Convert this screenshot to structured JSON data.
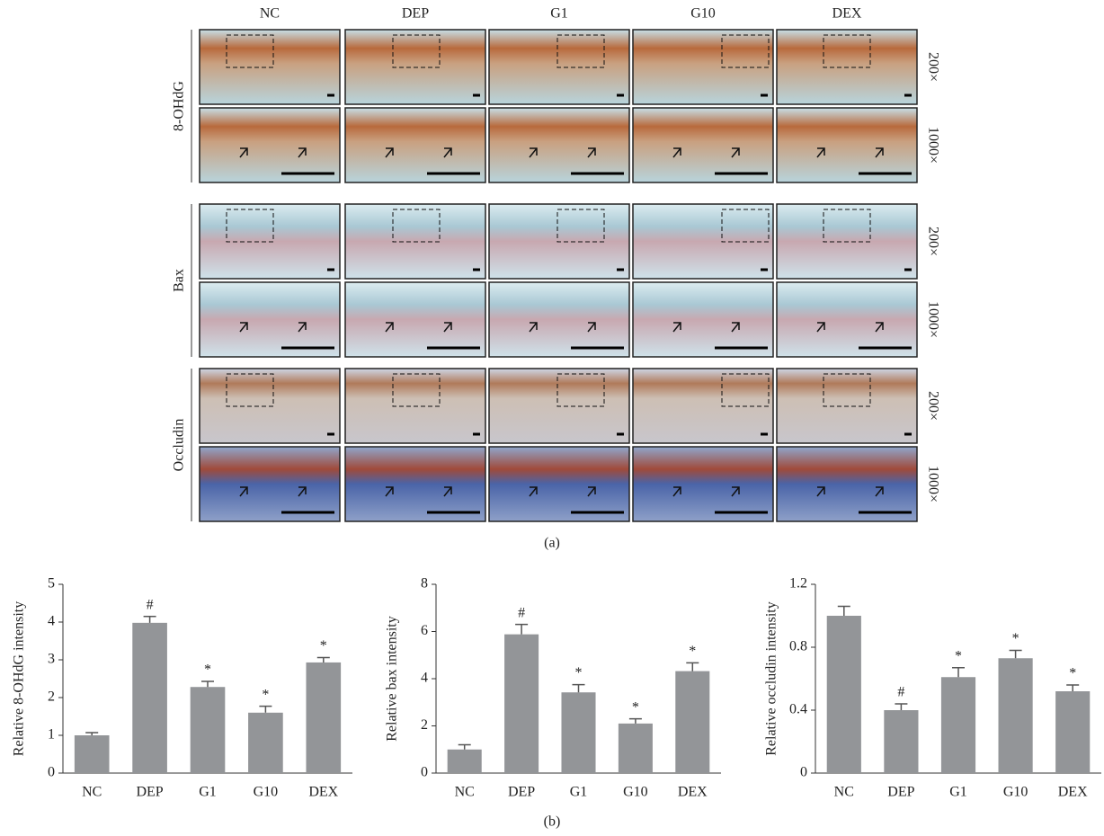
{
  "figure": {
    "columns": [
      "NC",
      "DEP",
      "G1",
      "G10",
      "DEX"
    ],
    "rows": [
      "8-OHdG",
      "Bax",
      "Occludin"
    ],
    "magnifications": [
      "200×",
      "1000×"
    ],
    "panel_labels": [
      "(a)",
      "(b)"
    ]
  },
  "chart_data": [
    {
      "type": "bar",
      "ylabel": "Relative 8-OHdG intensity",
      "categories": [
        "NC",
        "DEP",
        "G1",
        "G10",
        "DEX"
      ],
      "values": [
        1.0,
        3.98,
        2.28,
        1.6,
        2.93
      ],
      "errors": [
        0.07,
        0.17,
        0.15,
        0.17,
        0.13
      ],
      "annotations": [
        null,
        "#",
        "*",
        "*",
        "*"
      ],
      "color": "#939598",
      "ylim": [
        0,
        5
      ],
      "yticks": [
        0,
        1,
        2,
        3,
        4,
        5
      ]
    },
    {
      "type": "bar",
      "ylabel": "Relative bax intensity",
      "categories": [
        "NC",
        "DEP",
        "G1",
        "G10",
        "DEX"
      ],
      "values": [
        1.0,
        5.88,
        3.42,
        2.1,
        4.32
      ],
      "errors": [
        0.2,
        0.42,
        0.33,
        0.2,
        0.35
      ],
      "annotations": [
        null,
        "#",
        "*",
        "*",
        "*"
      ],
      "color": "#939598",
      "ylim": [
        0,
        8
      ],
      "yticks": [
        0,
        2,
        4,
        6,
        8
      ]
    },
    {
      "type": "bar",
      "ylabel": "Relative occludin intensity",
      "categories": [
        "NC",
        "DEP",
        "G1",
        "G10",
        "DEX"
      ],
      "values": [
        1.0,
        0.4,
        0.61,
        0.73,
        0.52
      ],
      "errors": [
        0.06,
        0.04,
        0.06,
        0.05,
        0.04
      ],
      "annotations": [
        null,
        "#",
        "*",
        "*",
        "*"
      ],
      "color": "#939598",
      "ylim": [
        0,
        1.2
      ],
      "yticks": [
        0,
        0.4,
        0.8,
        1.2
      ]
    }
  ]
}
